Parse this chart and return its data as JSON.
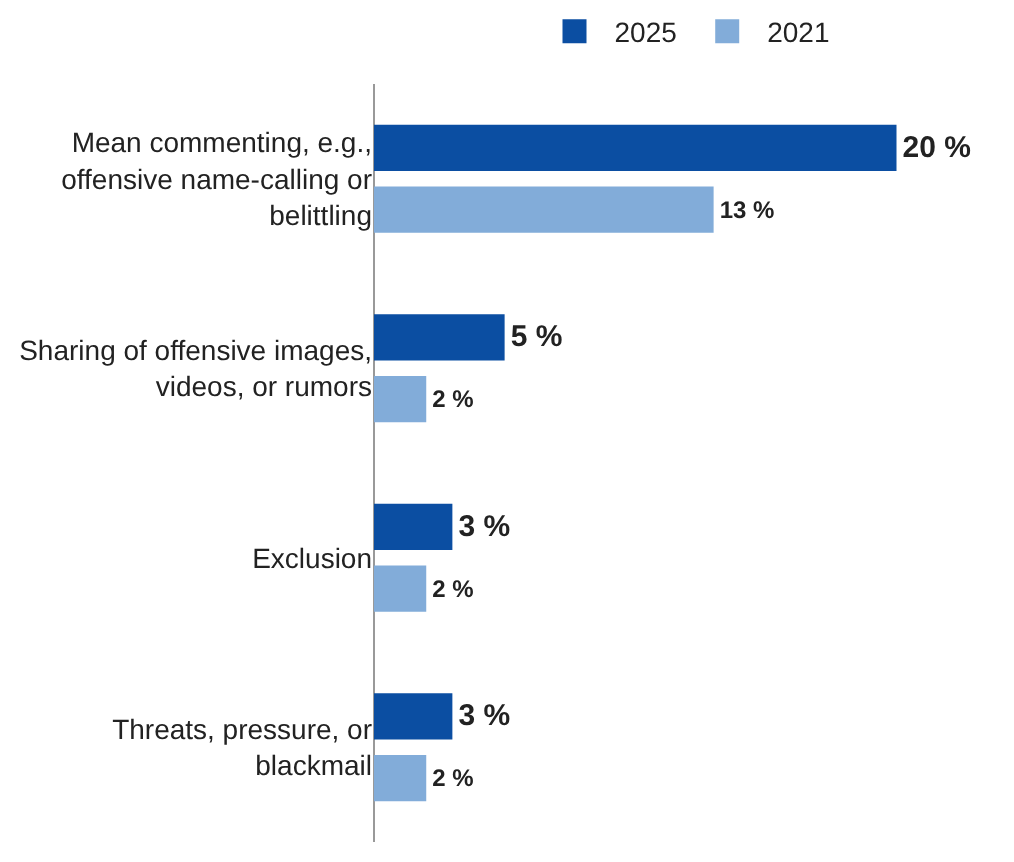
{
  "chart_data": {
    "type": "bar",
    "orientation": "horizontal",
    "legend": "top",
    "categories": [
      "Mean commenting, e.g., offensive name-calling or belittling",
      "Sharing of offensive images, videos, or rumors",
      "Exclusion",
      "Threats, pressure, or blackmail"
    ],
    "series": [
      {
        "name": "2025",
        "color": "#0b4ea2",
        "values": [
          20,
          5,
          3,
          3
        ],
        "value_labels": [
          "20 %",
          "5 %",
          "3 %",
          "3 %"
        ]
      },
      {
        "name": "2021",
        "color": "#82acd9",
        "values": [
          13,
          2,
          2,
          2
        ],
        "value_labels": [
          "13 %",
          "2 %",
          "2 %",
          "2 %"
        ]
      }
    ]
  }
}
